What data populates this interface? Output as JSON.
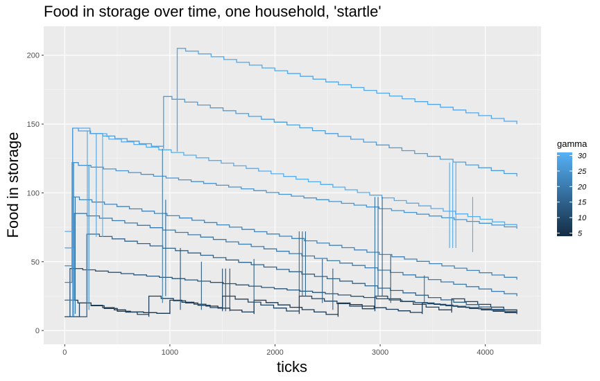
{
  "chart_data": {
    "type": "line",
    "title": "Food in storage over time, one household, 'startle'",
    "xlabel": "ticks",
    "ylabel": "Food in storage",
    "xlim": [
      -200,
      4530
    ],
    "ylim": [
      -10,
      221
    ],
    "x_ticks": [
      0,
      1000,
      2000,
      3000,
      4000
    ],
    "y_ticks": [
      0,
      50,
      100,
      150,
      200
    ],
    "grid": true,
    "colors": {
      "panel": "#ebebeb",
      "grid": "#ffffff",
      "low": "#132b43",
      "high": "#56b1f7"
    },
    "legend": {
      "title": "gamma",
      "position": "right",
      "range": [
        4,
        31
      ],
      "labels": [
        5,
        10,
        15,
        20,
        25,
        30
      ]
    },
    "series": [
      {
        "gamma": 30,
        "points": [
          [
            0,
            72
          ],
          [
            75,
            72
          ],
          [
            75,
            147
          ],
          [
            240,
            147
          ],
          [
            240,
            143
          ],
          [
            400,
            143
          ],
          [
            400,
            141
          ],
          [
            420,
            139
          ],
          [
            2200,
            110
          ],
          [
            4300,
            75
          ]
        ]
      },
      {
        "gamma": 29,
        "points": [
          [
            1070,
            130
          ],
          [
            1070,
            205
          ],
          [
            1150,
            205
          ],
          [
            1150,
            203
          ],
          [
            4300,
            150
          ]
        ]
      },
      {
        "gamma": 27,
        "points": [
          [
            0,
            60
          ],
          [
            75,
            60
          ],
          [
            75,
            147
          ],
          [
            130,
            147
          ],
          [
            130,
            145
          ],
          [
            940,
            132
          ],
          [
            940,
            170
          ],
          [
            1020,
            170
          ],
          [
            1020,
            168
          ],
          [
            4300,
            112
          ]
        ]
      },
      {
        "gamma": 25,
        "points": [
          [
            0,
            47
          ],
          [
            70,
            47
          ],
          [
            70,
            122
          ],
          [
            130,
            122
          ],
          [
            130,
            120
          ],
          [
            4300,
            74
          ]
        ]
      },
      {
        "gamma": 22,
        "points": [
          [
            0,
            35
          ],
          [
            70,
            35
          ],
          [
            70,
            97
          ],
          [
            140,
            97
          ],
          [
            140,
            95
          ],
          [
            4300,
            37
          ]
        ]
      },
      {
        "gamma": 20,
        "points": [
          [
            0,
            22
          ],
          [
            90,
            22
          ],
          [
            90,
            85
          ],
          [
            4300,
            25
          ]
        ]
      },
      {
        "gamma": 15,
        "points": [
          [
            0,
            10
          ],
          [
            210,
            10
          ],
          [
            210,
            70
          ],
          [
            4300,
            12
          ]
        ]
      },
      {
        "gamma": 12,
        "points": [
          [
            0,
            10
          ],
          [
            50,
            10
          ],
          [
            50,
            45
          ],
          [
            4300,
            13
          ]
        ]
      },
      {
        "gamma": 8,
        "points": [
          [
            0,
            10
          ],
          [
            140,
            10
          ],
          [
            140,
            20
          ],
          [
            800,
            10
          ],
          [
            800,
            25
          ],
          [
            1500,
            15
          ],
          [
            1500,
            25
          ],
          [
            2230,
            12
          ],
          [
            2230,
            25
          ],
          [
            2950,
            14
          ],
          [
            2950,
            25
          ],
          [
            3680,
            13
          ],
          [
            3680,
            23
          ],
          [
            4300,
            13
          ]
        ]
      },
      {
        "gamma": 6,
        "points": [
          [
            0,
            22
          ],
          [
            500,
            14
          ],
          [
            1000,
            12
          ],
          [
            1000,
            22
          ],
          [
            1800,
            12
          ],
          [
            1800,
            22
          ],
          [
            2600,
            10
          ],
          [
            2600,
            20
          ],
          [
            3400,
            12
          ],
          [
            3400,
            20
          ],
          [
            4300,
            12
          ]
        ]
      }
    ],
    "spikes": [
      {
        "gamma": 25,
        "x": 75,
        "low": 10,
        "high": 147
      },
      {
        "gamma": 22,
        "x": 85,
        "low": 10,
        "high": 122
      },
      {
        "gamma": 18,
        "x": 100,
        "low": 12,
        "high": 97
      },
      {
        "gamma": 28,
        "x": 215,
        "low": 20,
        "high": 145
      },
      {
        "gamma": 24,
        "x": 230,
        "low": 15,
        "high": 120
      },
      {
        "gamma": 28,
        "x": 300,
        "low": 68,
        "high": 143
      },
      {
        "gamma": 30,
        "x": 360,
        "low": 68,
        "high": 143
      },
      {
        "gamma": 20,
        "x": 930,
        "low": 20,
        "high": 132
      },
      {
        "gamma": 16,
        "x": 960,
        "low": 25,
        "high": 95
      },
      {
        "gamma": 12,
        "x": 1100,
        "low": 15,
        "high": 60
      },
      {
        "gamma": 10,
        "x": 1500,
        "low": 14,
        "high": 45
      },
      {
        "gamma": 10,
        "x": 1530,
        "low": 14,
        "high": 45
      },
      {
        "gamma": 10,
        "x": 1570,
        "low": 14,
        "high": 45
      },
      {
        "gamma": 14,
        "x": 1300,
        "low": 15,
        "high": 50
      },
      {
        "gamma": 14,
        "x": 1800,
        "low": 20,
        "high": 52
      },
      {
        "gamma": 16,
        "x": 2230,
        "low": 25,
        "high": 72
      },
      {
        "gamma": 16,
        "x": 2260,
        "low": 25,
        "high": 72
      },
      {
        "gamma": 16,
        "x": 2290,
        "low": 25,
        "high": 72
      },
      {
        "gamma": 14,
        "x": 2450,
        "low": 20,
        "high": 52
      },
      {
        "gamma": 18,
        "x": 2950,
        "low": 25,
        "high": 97
      },
      {
        "gamma": 18,
        "x": 2980,
        "low": 25,
        "high": 97
      },
      {
        "gamma": 16,
        "x": 3020,
        "low": 25,
        "high": 97
      },
      {
        "gamma": 14,
        "x": 3100,
        "low": 20,
        "high": 55
      },
      {
        "gamma": 16,
        "x": 3420,
        "low": 20,
        "high": 40
      },
      {
        "gamma": 29,
        "x": 3660,
        "low": 60,
        "high": 122
      },
      {
        "gamma": 29,
        "x": 3690,
        "low": 60,
        "high": 122
      },
      {
        "gamma": 29,
        "x": 3720,
        "low": 60,
        "high": 122
      },
      {
        "gamma": 30,
        "x": 3880,
        "low": 57,
        "high": 97
      },
      {
        "gamma": 14,
        "x": 2550,
        "low": 15,
        "high": 45
      }
    ]
  }
}
